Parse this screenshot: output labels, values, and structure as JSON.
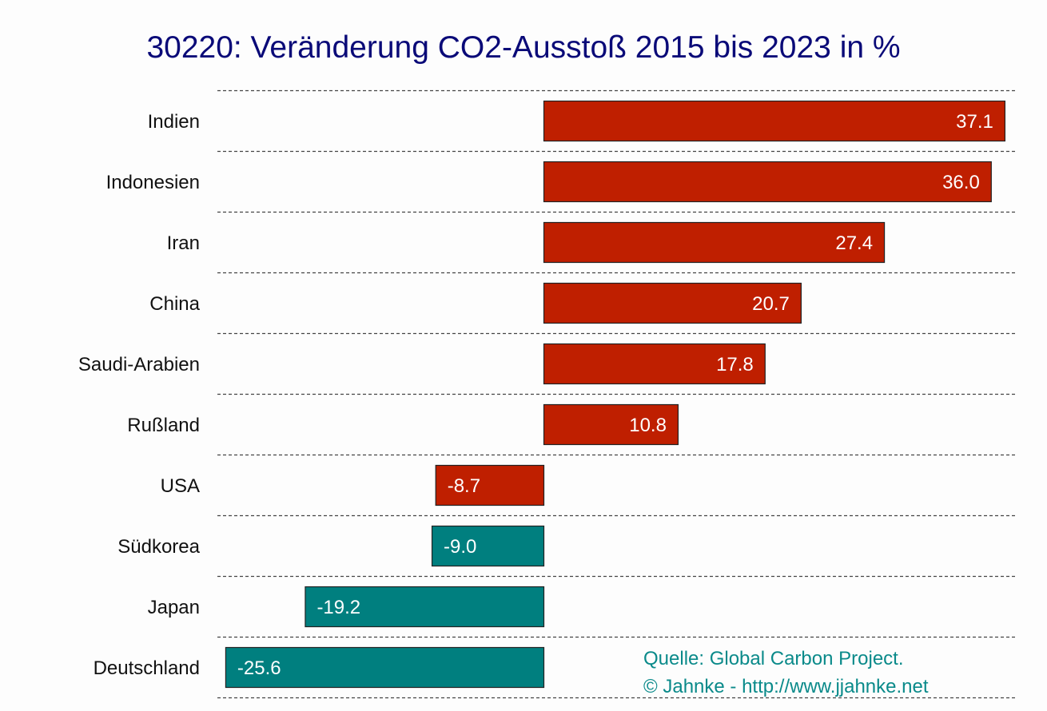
{
  "chart_data": {
    "type": "bar",
    "orientation": "horizontal",
    "title": "30220: Veränderung CO2-Ausstoß 2015 bis 2023 in %",
    "xlabel": "",
    "ylabel": "",
    "categories": [
      "Indien",
      "Indonesien",
      "Iran",
      "China",
      "Saudi-Arabien",
      "Rußland",
      "USA",
      "Südkorea",
      "Japan",
      "Deutschland"
    ],
    "values": [
      37.1,
      36.0,
      27.4,
      20.7,
      17.8,
      10.8,
      -8.7,
      -9.0,
      -19.2,
      -25.6
    ],
    "value_labels": [
      "37.1",
      "36.0",
      "27.4",
      "20.7",
      "17.8",
      "10.8",
      "-8.7",
      "-9.0",
      "-19.2",
      "-25.6"
    ],
    "bar_colors": [
      "#bf1f00",
      "#bf1f00",
      "#bf1f00",
      "#bf1f00",
      "#bf1f00",
      "#bf1f00",
      "#bf1f00",
      "#007f7f",
      "#007f7f",
      "#007f7f"
    ],
    "xlim": [
      -26,
      38
    ],
    "grid": true,
    "legend": "none"
  },
  "source": {
    "line1": "Quelle: Global Carbon Project.",
    "line2": "© Jahnke - http://www.jjahnke.net"
  }
}
